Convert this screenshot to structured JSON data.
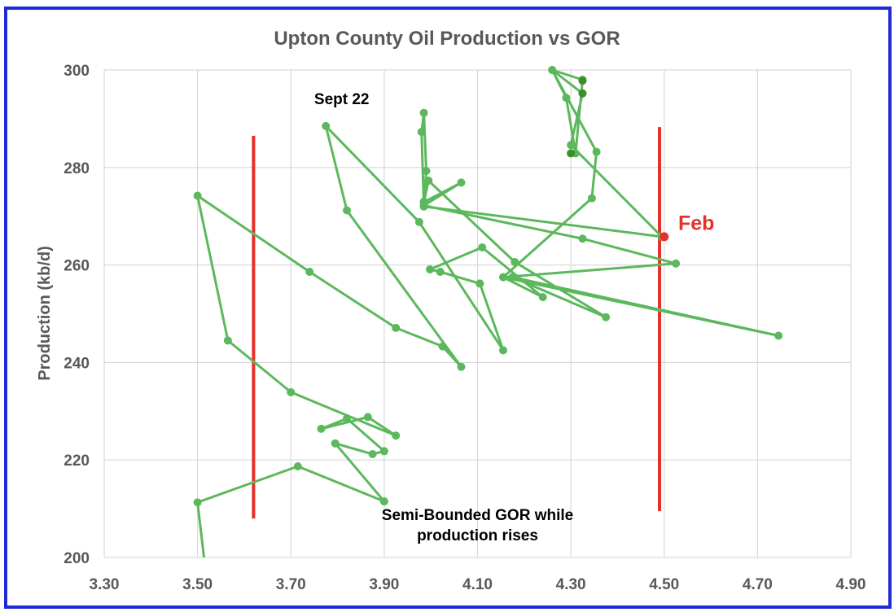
{
  "chart_data": {
    "type": "scatter",
    "title": "Upton County Oil Production vs GOR",
    "xlabel": "",
    "ylabel": "Production (kb/d)",
    "xlim": [
      3.3,
      4.9
    ],
    "ylim": [
      200,
      300
    ],
    "x_ticks": [
      "3.30",
      "3.50",
      "3.70",
      "3.90",
      "4.10",
      "4.30",
      "4.50",
      "4.70",
      "4.90"
    ],
    "y_ticks": [
      "200",
      "220",
      "240",
      "260",
      "280",
      "300"
    ],
    "grid": true,
    "series": [
      {
        "color": "#5cb85c",
        "line": true,
        "points": [
          [
            3.52,
            195.0
          ],
          [
            3.5,
            211.3
          ],
          [
            3.715,
            218.7
          ],
          [
            3.9,
            211.5
          ],
          [
            3.795,
            223.4
          ],
          [
            3.875,
            221.2
          ],
          [
            3.9,
            221.8
          ],
          [
            3.82,
            228.5
          ],
          [
            3.765,
            226.4
          ],
          [
            3.865,
            228.8
          ],
          [
            3.925,
            225.0
          ],
          [
            3.7,
            233.9
          ],
          [
            3.565,
            244.5
          ],
          [
            3.5,
            274.2
          ],
          [
            3.74,
            258.6
          ],
          [
            3.925,
            247.1
          ],
          [
            4.025,
            243.3
          ],
          [
            4.065,
            239.1
          ],
          [
            3.82,
            271.2
          ],
          [
            3.775,
            288.5
          ],
          [
            3.975,
            268.8
          ],
          [
            4.155,
            242.5
          ],
          [
            4.105,
            256.2
          ],
          [
            4.02,
            258.6
          ],
          [
            3.998,
            259.1
          ],
          [
            4.11,
            263.6
          ],
          [
            4.24,
            253.4
          ],
          [
            4.155,
            257.5
          ],
          [
            4.745,
            245.5
          ],
          [
            4.175,
            257.5
          ],
          [
            4.375,
            249.3
          ],
          [
            4.18,
            260.6
          ],
          [
            3.995,
            277.3
          ],
          [
            3.985,
            272.9
          ],
          [
            4.065,
            276.9
          ],
          [
            3.985,
            272.2
          ],
          [
            4.325,
            265.4
          ],
          [
            4.525,
            260.3
          ],
          [
            4.155,
            257.5
          ],
          [
            4.345,
            273.7
          ],
          [
            4.355,
            283.2
          ],
          [
            4.26,
            300.0
          ],
          [
            4.325,
            298.0
          ],
          [
            4.31,
            282.9
          ],
          [
            4.29,
            294.3
          ],
          [
            4.26,
            300.0
          ],
          [
            4.325,
            295.2
          ],
          [
            4.3,
            284.6
          ],
          [
            4.495,
            265.8
          ],
          [
            3.985,
            272.0
          ],
          [
            3.98,
            287.3
          ],
          [
            3.985,
            291.2
          ],
          [
            3.99,
            279.3
          ],
          [
            3.985,
            273.0
          ]
        ],
        "dark_points": [
          [
            4.325,
            297.8
          ],
          [
            4.325,
            295.2
          ],
          [
            4.3,
            282.9
          ]
        ]
      }
    ],
    "highlight_point": {
      "x": 4.5,
      "y": 265.8,
      "color": "#e8302a"
    },
    "reference_lines": [
      {
        "x": 3.62,
        "y_from": 208,
        "y_to": 286.5,
        "color": "#e8302a"
      },
      {
        "x": 4.49,
        "y_from": 209.5,
        "y_to": 288.3,
        "color": "#e8302a"
      }
    ],
    "annotations": [
      {
        "text": "Sept 22",
        "x": 3.75,
        "y": 293.0,
        "color": "#000000"
      },
      {
        "text": "Feb",
        "x": 4.53,
        "y": 267.2,
        "color": "#e8302a"
      },
      {
        "text": "Semi-Bounded GOR while",
        "x": 4.1,
        "y": 207.7,
        "color": "#000000"
      },
      {
        "text": "production rises",
        "x": 4.1,
        "y": 203.5,
        "color": "#000000"
      }
    ]
  },
  "colors": {
    "frame": "#1f2bd6",
    "grid": "#d9d9d9",
    "axis_text": "#595959"
  }
}
